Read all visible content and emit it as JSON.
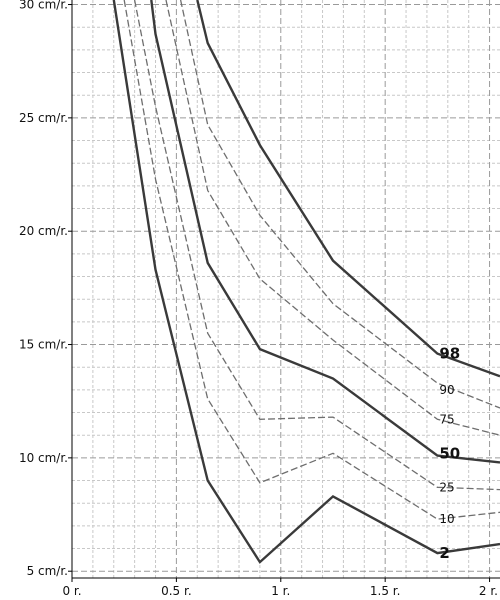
{
  "chart_data": {
    "type": "line",
    "title": "",
    "xlabel": "",
    "ylabel": "",
    "xlim": [
      0,
      2.05
    ],
    "ylim": [
      4.7,
      30.2
    ],
    "grid": true,
    "x_ticks": [
      {
        "value": 0,
        "label": "0 r."
      },
      {
        "value": 0.5,
        "label": "0.5 r."
      },
      {
        "value": 1,
        "label": "1 r."
      },
      {
        "value": 1.5,
        "label": "1.5 r."
      },
      {
        "value": 2,
        "label": "2 r."
      }
    ],
    "y_ticks": [
      {
        "value": 5,
        "label": "5 cm/r."
      },
      {
        "value": 10,
        "label": "10 cm/r."
      },
      {
        "value": 15,
        "label": "15 cm/r."
      },
      {
        "value": 20,
        "label": "20 cm/r."
      },
      {
        "value": 25,
        "label": "25 cm/r."
      },
      {
        "value": 30,
        "label": "30 cm/r."
      }
    ],
    "series": [
      {
        "name": "2",
        "bold": true,
        "label": "2",
        "x": [
          0.2,
          0.4,
          0.65,
          0.9,
          1.25,
          1.75,
          2.05
        ],
        "y": [
          30.2,
          18.3,
          9.0,
          5.4,
          8.3,
          5.8,
          6.2
        ]
      },
      {
        "name": "10",
        "bold": false,
        "label": "10",
        "x": [
          0.25,
          0.4,
          0.65,
          0.9,
          1.25,
          1.75,
          2.05
        ],
        "y": [
          30.2,
          22.3,
          12.6,
          8.9,
          10.2,
          7.3,
          7.6
        ]
      },
      {
        "name": "25",
        "bold": false,
        "label": "25",
        "x": [
          0.3,
          0.4,
          0.65,
          0.9,
          1.25,
          1.75,
          2.05
        ],
        "y": [
          30.2,
          25.5,
          15.5,
          11.7,
          11.8,
          8.7,
          8.6
        ]
      },
      {
        "name": "50",
        "bold": true,
        "label": "50",
        "x": [
          0.38,
          0.4,
          0.65,
          0.9,
          1.25,
          1.75,
          2.05
        ],
        "y": [
          30.2,
          28.7,
          18.6,
          14.8,
          13.5,
          10.1,
          9.8
        ]
      },
      {
        "name": "75",
        "bold": false,
        "label": "75",
        "x": [
          0.45,
          0.65,
          0.9,
          1.25,
          1.75,
          2.05
        ],
        "y": [
          30.2,
          21.8,
          17.9,
          15.2,
          11.7,
          11.0
        ]
      },
      {
        "name": "90",
        "bold": false,
        "label": "90",
        "x": [
          0.52,
          0.65,
          0.9,
          1.25,
          1.75,
          2.05
        ],
        "y": [
          30.2,
          24.7,
          20.7,
          16.8,
          13.3,
          12.2
        ]
      },
      {
        "name": "98",
        "bold": true,
        "label": "98",
        "x": [
          0.6,
          0.65,
          0.9,
          1.25,
          1.75,
          2.05
        ],
        "y": [
          30.2,
          28.3,
          23.8,
          18.7,
          14.6,
          13.6
        ]
      }
    ],
    "curve_labels": [
      {
        "text": "98",
        "x": 1.75,
        "y": 14.6,
        "bold": true
      },
      {
        "text": "90",
        "x": 1.75,
        "y": 13.0,
        "bold": false
      },
      {
        "text": "75",
        "x": 1.75,
        "y": 11.7,
        "bold": false
      },
      {
        "text": "50",
        "x": 1.75,
        "y": 10.2,
        "bold": true
      },
      {
        "text": "25",
        "x": 1.75,
        "y": 8.7,
        "bold": false
      },
      {
        "text": "10",
        "x": 1.75,
        "y": 7.3,
        "bold": false
      },
      {
        "text": "2",
        "x": 1.75,
        "y": 5.8,
        "bold": true
      }
    ],
    "colors": {
      "bold_line": "#3a3a3a",
      "thin_line": "#6e6e6e",
      "major_grid": "#9a9a9a",
      "minor_grid": "#c8c8c8",
      "axis": "#000000"
    }
  }
}
